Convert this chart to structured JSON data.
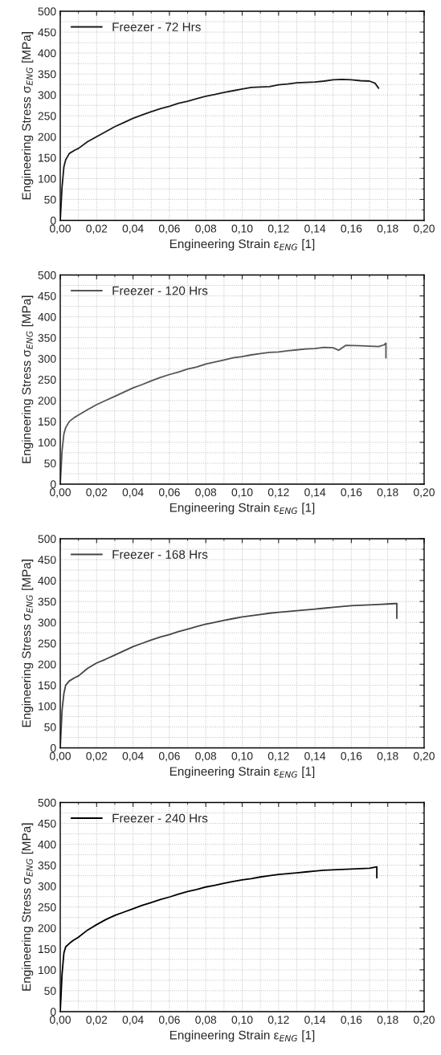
{
  "chart_data": [
    {
      "type": "line",
      "xlabel": "Engineering Strain ε$_{ENG}$ [1]",
      "ylabel": "Engineering Stress σ$_{ENG}$ [MPa]",
      "xlim": [
        0,
        0.2
      ],
      "ylim": [
        0,
        500
      ],
      "grid": true,
      "legend": "top left",
      "line_style": "solid",
      "xticks": [
        {
          "value": 0,
          "label": "0,00"
        },
        {
          "value": 0.02,
          "label": "0,02"
        },
        {
          "value": 0.04,
          "label": "0,04"
        },
        {
          "value": 0.06,
          "label": "0,06"
        },
        {
          "value": 0.08,
          "label": "0,08"
        },
        {
          "value": 0.1,
          "label": "0,10"
        },
        {
          "value": 0.12,
          "label": "0,12"
        },
        {
          "value": 0.14,
          "label": "0,14"
        },
        {
          "value": 0.16,
          "label": "0,16"
        },
        {
          "value": 0.18,
          "label": "0,18"
        },
        {
          "value": 0.2,
          "label": "0,20"
        }
      ],
      "yticks": [
        0,
        50,
        100,
        150,
        200,
        250,
        300,
        350,
        400,
        450,
        500
      ],
      "series": [
        {
          "name": "Freezer - 72 Hrs",
          "color": "#1a1a1a",
          "x": [
            0,
            0.001,
            0.002,
            0.003,
            0.005,
            0.008,
            0.01,
            0.015,
            0.02,
            0.025,
            0.03,
            0.035,
            0.04,
            0.045,
            0.05,
            0.055,
            0.06,
            0.065,
            0.07,
            0.075,
            0.08,
            0.085,
            0.09,
            0.095,
            0.1,
            0.105,
            0.11,
            0.115,
            0.12,
            0.125,
            0.13,
            0.135,
            0.14,
            0.145,
            0.15,
            0.155,
            0.16,
            0.165,
            0.17,
            0.173,
            0.175
          ],
          "values": [
            0,
            80,
            128,
            145,
            160,
            168,
            172,
            188,
            200,
            212,
            224,
            234,
            244,
            252,
            260,
            267,
            273,
            280,
            285,
            291,
            297,
            301,
            306,
            310,
            314,
            318,
            319,
            320,
            324,
            326,
            329,
            330,
            331,
            333,
            336,
            337,
            336,
            334,
            333,
            328,
            316
          ]
        }
      ]
    },
    {
      "type": "line",
      "xlabel": "Engineering Strain ε$_{ENG}$ [1]",
      "ylabel": "Engineering Stress σ$_{ENG}$ [MPa]",
      "xlim": [
        0,
        0.2
      ],
      "ylim": [
        0,
        500
      ],
      "grid": true,
      "legend": "top left",
      "line_style": "solid",
      "xticks": [
        {
          "value": 0,
          "label": "0,00"
        },
        {
          "value": 0.02,
          "label": "0,02"
        },
        {
          "value": 0.04,
          "label": "0,04"
        },
        {
          "value": 0.06,
          "label": "0,06"
        },
        {
          "value": 0.08,
          "label": "0,08"
        },
        {
          "value": 0.1,
          "label": "0,10"
        },
        {
          "value": 0.12,
          "label": "0,12"
        },
        {
          "value": 0.14,
          "label": "0,14"
        },
        {
          "value": 0.16,
          "label": "0,16"
        },
        {
          "value": 0.18,
          "label": "0,18"
        },
        {
          "value": 0.2,
          "label": "0,20"
        }
      ],
      "yticks": [
        0,
        50,
        100,
        150,
        200,
        250,
        300,
        350,
        400,
        450,
        500
      ],
      "series": [
        {
          "name": "Freezer - 120 Hrs",
          "color": "#555555",
          "x": [
            0,
            0.001,
            0.002,
            0.003,
            0.005,
            0.008,
            0.01,
            0.015,
            0.02,
            0.025,
            0.03,
            0.035,
            0.04,
            0.045,
            0.05,
            0.055,
            0.06,
            0.065,
            0.07,
            0.075,
            0.08,
            0.085,
            0.09,
            0.095,
            0.1,
            0.105,
            0.11,
            0.115,
            0.12,
            0.125,
            0.13,
            0.135,
            0.14,
            0.145,
            0.15,
            0.153,
            0.157,
            0.165,
            0.17,
            0.175,
            0.178,
            0.179,
            0.179
          ],
          "values": [
            0,
            80,
            120,
            135,
            150,
            160,
            165,
            178,
            190,
            200,
            210,
            220,
            230,
            238,
            247,
            255,
            262,
            268,
            275,
            280,
            287,
            292,
            297,
            302,
            305,
            309,
            312,
            315,
            316,
            319,
            321,
            323,
            324,
            327,
            326,
            320,
            332,
            331,
            330,
            329,
            333,
            337,
            302
          ]
        }
      ]
    },
    {
      "type": "line",
      "xlabel": "Engineering Strain ε$_{ENG}$ [1]",
      "ylabel": "Engineering Stress σ$_{ENG}$ [MPa]",
      "xlim": [
        0,
        0.2
      ],
      "ylim": [
        0,
        500
      ],
      "grid": true,
      "legend": "top left",
      "line_style": "solid",
      "xticks": [
        {
          "value": 0,
          "label": "0,00"
        },
        {
          "value": 0.02,
          "label": "0,02"
        },
        {
          "value": 0.04,
          "label": "0,04"
        },
        {
          "value": 0.06,
          "label": "0,06"
        },
        {
          "value": 0.08,
          "label": "0,08"
        },
        {
          "value": 0.1,
          "label": "0,10"
        },
        {
          "value": 0.12,
          "label": "0,12"
        },
        {
          "value": 0.14,
          "label": "0,14"
        },
        {
          "value": 0.16,
          "label": "0,16"
        },
        {
          "value": 0.18,
          "label": "0,18"
        },
        {
          "value": 0.2,
          "label": "0,20"
        }
      ],
      "yticks": [
        0,
        50,
        100,
        150,
        200,
        250,
        300,
        350,
        400,
        450,
        500
      ],
      "series": [
        {
          "name": "Freezer - 168 Hrs",
          "color": "#444444",
          "x": [
            0,
            0.001,
            0.002,
            0.003,
            0.005,
            0.008,
            0.01,
            0.015,
            0.02,
            0.025,
            0.03,
            0.035,
            0.04,
            0.045,
            0.05,
            0.055,
            0.06,
            0.065,
            0.07,
            0.075,
            0.08,
            0.085,
            0.09,
            0.095,
            0.1,
            0.105,
            0.11,
            0.115,
            0.12,
            0.125,
            0.13,
            0.135,
            0.14,
            0.145,
            0.15,
            0.155,
            0.16,
            0.165,
            0.17,
            0.175,
            0.18,
            0.184,
            0.185,
            0.185
          ],
          "values": [
            0,
            90,
            130,
            150,
            160,
            168,
            172,
            190,
            203,
            212,
            222,
            232,
            242,
            250,
            258,
            265,
            271,
            278,
            284,
            290,
            296,
            300,
            305,
            309,
            313,
            316,
            319,
            322,
            324,
            326,
            328,
            330,
            332,
            334,
            336,
            338,
            340,
            341,
            342,
            343,
            344,
            345,
            345,
            310
          ]
        }
      ]
    },
    {
      "type": "line",
      "xlabel": "Engineering Strain ε$_{ENG}$ [1]",
      "ylabel": "Engineering Stress σ$_{ENG}$ [MPa]",
      "xlim": [
        0,
        0.2
      ],
      "ylim": [
        0,
        500
      ],
      "grid": true,
      "legend": "top left",
      "line_style": "solid",
      "xticks": [
        {
          "value": 0,
          "label": "0,00"
        },
        {
          "value": 0.02,
          "label": "0,02"
        },
        {
          "value": 0.04,
          "label": "0,04"
        },
        {
          "value": 0.06,
          "label": "0,06"
        },
        {
          "value": 0.08,
          "label": "0,08"
        },
        {
          "value": 0.1,
          "label": "0,10"
        },
        {
          "value": 0.12,
          "label": "0,12"
        },
        {
          "value": 0.14,
          "label": "0,14"
        },
        {
          "value": 0.16,
          "label": "0,16"
        },
        {
          "value": 0.18,
          "label": "0,18"
        },
        {
          "value": 0.2,
          "label": "0,20"
        }
      ],
      "yticks": [
        0,
        50,
        100,
        150,
        200,
        250,
        300,
        350,
        400,
        450,
        500
      ],
      "series": [
        {
          "name": "Freezer - 240 Hrs",
          "color": "#000000",
          "x": [
            0,
            0.001,
            0.002,
            0.003,
            0.005,
            0.007,
            0.01,
            0.015,
            0.02,
            0.025,
            0.03,
            0.035,
            0.04,
            0.045,
            0.05,
            0.055,
            0.06,
            0.065,
            0.07,
            0.075,
            0.08,
            0.085,
            0.09,
            0.095,
            0.1,
            0.105,
            0.11,
            0.115,
            0.12,
            0.125,
            0.13,
            0.135,
            0.14,
            0.145,
            0.15,
            0.155,
            0.16,
            0.165,
            0.17,
            0.174,
            0.174
          ],
          "values": [
            0,
            90,
            140,
            155,
            163,
            170,
            178,
            195,
            208,
            220,
            230,
            238,
            246,
            254,
            261,
            268,
            274,
            281,
            287,
            292,
            298,
            302,
            307,
            311,
            315,
            318,
            322,
            325,
            328,
            330,
            332,
            334,
            336,
            338,
            339,
            340,
            341,
            342,
            343,
            346,
            320
          ]
        }
      ]
    }
  ]
}
